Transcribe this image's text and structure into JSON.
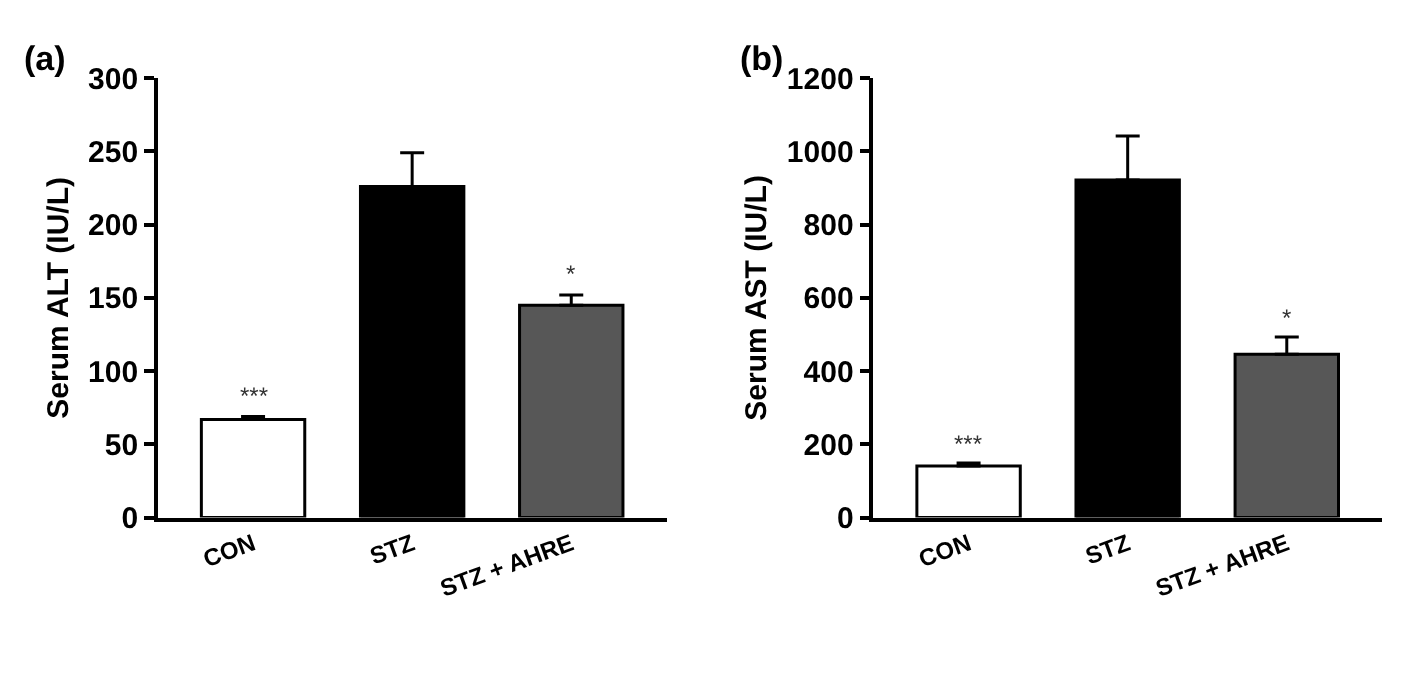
{
  "chart_data": [
    {
      "type": "bar",
      "title": "(a)",
      "ylabel": "Serum ALT (IU/L)",
      "categories": [
        "CON",
        "STZ",
        "STZ + AHRE"
      ],
      "values": [
        67,
        226,
        145
      ],
      "errors": [
        2,
        23,
        7
      ],
      "colors": [
        "#ffffff",
        "#000000",
        "#575757"
      ],
      "ylim": [
        0,
        300
      ],
      "yticks": [
        0,
        50,
        100,
        150,
        200,
        250,
        300
      ],
      "annotations": [
        {
          "text": "***",
          "x": "CON",
          "y": 69
        },
        {
          "text": "*",
          "x": "STZ + AHRE",
          "y": 152
        }
      ]
    },
    {
      "type": "bar",
      "title": "(b)",
      "ylabel": "Serum AST (IU/L)",
      "categories": [
        "CON",
        "STZ",
        "STZ + AHRE"
      ],
      "values": [
        141,
        922,
        446
      ],
      "errors": [
        8,
        120,
        47
      ],
      "colors": [
        "#ffffff",
        "#000000",
        "#575757"
      ],
      "ylim": [
        0,
        1200
      ],
      "yticks": [
        0,
        200,
        400,
        600,
        800,
        1000,
        1200
      ],
      "annotations": [
        {
          "text": "***",
          "x": "CON",
          "y": 149
        },
        {
          "text": "*",
          "x": "STZ + AHRE",
          "y": 493
        }
      ]
    }
  ]
}
